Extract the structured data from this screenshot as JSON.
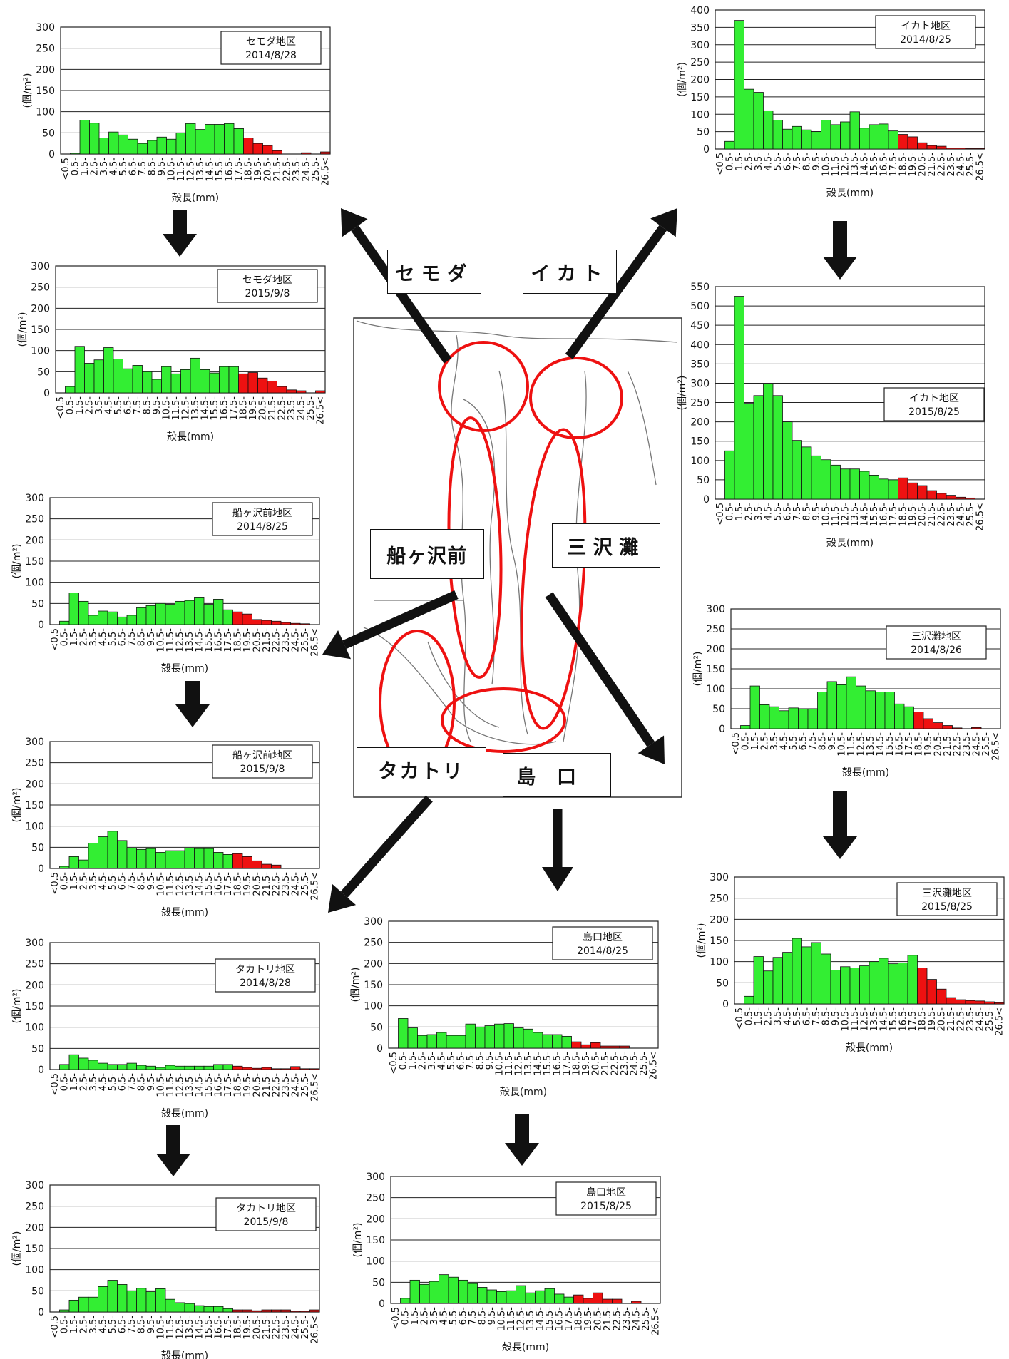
{
  "x_tick_labels": [
    "<0.5",
    "0.5-",
    "1.5-",
    "2.5-",
    "3.5-",
    "4.5-",
    "5.5-",
    "6.5-",
    "7.5-",
    "8.5-",
    "9.5-",
    "10.5-",
    "11.5-",
    "12.5-",
    "13.5-",
    "14.5-",
    "15.5-",
    "16.5-",
    "17.5-",
    "18.5-",
    "19.5-",
    "20.5-",
    "21.5-",
    "22.5-",
    "23.5-",
    "24.5-",
    "25.5-",
    "26.5<"
  ],
  "colors": {
    "below_18": "#33ee33",
    "from_18": "#ee1111",
    "map_circle": "#ee1111",
    "arrow": "#111111"
  },
  "region_labels": {
    "semoda": "セモダ",
    "ikato": "イカト",
    "funagasawamae": "船ヶ沢前",
    "misawanada": "三沢灘",
    "takatori": "タカトリ",
    "shimaguchi": "島口"
  },
  "chart_data": [
    {
      "type": "bar",
      "title": "セモダ地区",
      "date": "2014/8/28",
      "ylabel": "(個/m²)",
      "xlabel": "殻長(mm)",
      "ylim": [
        0,
        300
      ],
      "yticks": [
        0,
        50,
        100,
        150,
        200,
        250,
        300
      ],
      "values": [
        0,
        2,
        80,
        73,
        38,
        52,
        45,
        35,
        25,
        32,
        40,
        35,
        50,
        72,
        58,
        70,
        70,
        72,
        60,
        38,
        25,
        20,
        8,
        0,
        0,
        3,
        0,
        5
      ]
    },
    {
      "type": "bar",
      "title": "セモダ地区",
      "date": "2015/9/8",
      "ylabel": "(個/m²)",
      "xlabel": "殻長(mm)",
      "ylim": [
        0,
        300
      ],
      "yticks": [
        0,
        50,
        100,
        150,
        200,
        250,
        300
      ],
      "values": [
        0,
        15,
        110,
        70,
        78,
        107,
        80,
        57,
        65,
        50,
        32,
        62,
        45,
        55,
        82,
        55,
        47,
        62,
        62,
        45,
        48,
        35,
        28,
        15,
        7,
        5,
        0,
        5
      ]
    },
    {
      "type": "bar",
      "title": "船ヶ沢前地区",
      "date": "2014/8/25",
      "ylabel": "(個/m²)",
      "xlabel": "殻長(mm)",
      "ylim": [
        0,
        300
      ],
      "yticks": [
        0,
        50,
        100,
        150,
        200,
        250,
        300
      ],
      "values": [
        0,
        8,
        75,
        55,
        22,
        32,
        30,
        18,
        22,
        40,
        45,
        50,
        48,
        55,
        57,
        65,
        48,
        60,
        35,
        30,
        25,
        12,
        10,
        8,
        5,
        3,
        2,
        0
      ]
    },
    {
      "type": "bar",
      "title": "船ヶ沢前地区",
      "date": "2015/9/8",
      "ylabel": "(個/m²)",
      "xlabel": "殻長(mm)",
      "ylim": [
        0,
        300
      ],
      "yticks": [
        0,
        50,
        100,
        150,
        200,
        250,
        300
      ],
      "values": [
        0,
        5,
        28,
        20,
        60,
        75,
        88,
        66,
        48,
        45,
        47,
        38,
        42,
        42,
        48,
        47,
        47,
        38,
        33,
        35,
        28,
        18,
        10,
        8,
        0,
        0,
        0,
        0
      ]
    },
    {
      "type": "bar",
      "title": "タカトリ地区",
      "date": "2014/8/28",
      "ylabel": "(個/m²)",
      "xlabel": "殻長(mm)",
      "ylim": [
        0,
        300
      ],
      "yticks": [
        0,
        50,
        100,
        150,
        200,
        250,
        300
      ],
      "values": [
        0,
        12,
        35,
        27,
        22,
        15,
        12,
        12,
        15,
        10,
        8,
        5,
        10,
        8,
        8,
        8,
        8,
        12,
        12,
        8,
        5,
        3,
        5,
        2,
        2,
        7,
        2,
        2
      ]
    },
    {
      "type": "bar",
      "title": "タカトリ地区",
      "date": "2015/9/8",
      "ylabel": "(個/m²)",
      "xlabel": "殻長(mm)",
      "ylim": [
        0,
        300
      ],
      "yticks": [
        0,
        50,
        100,
        150,
        200,
        250,
        300
      ],
      "values": [
        0,
        5,
        28,
        35,
        35,
        60,
        75,
        65,
        50,
        56,
        48,
        55,
        30,
        22,
        20,
        15,
        13,
        13,
        8,
        5,
        5,
        3,
        5,
        5,
        5,
        2,
        2,
        5
      ]
    },
    {
      "type": "bar",
      "title": "島口地区",
      "date": "2014/8/25",
      "ylabel": "(個/m²)",
      "xlabel": "殻長(mm)",
      "ylim": [
        0,
        300
      ],
      "yticks": [
        0,
        50,
        100,
        150,
        200,
        250,
        300
      ],
      "values": [
        0,
        70,
        48,
        30,
        32,
        37,
        30,
        30,
        57,
        50,
        53,
        57,
        58,
        48,
        45,
        37,
        32,
        32,
        28,
        15,
        8,
        13,
        5,
        5,
        5,
        0,
        0,
        0
      ]
    },
    {
      "type": "bar",
      "title": "島口地区",
      "date": "2015/8/25",
      "ylabel": "(個/m²)",
      "xlabel": "殻長(mm)",
      "ylim": [
        0,
        300
      ],
      "yticks": [
        0,
        50,
        100,
        150,
        200,
        250,
        300
      ],
      "values": [
        0,
        12,
        55,
        45,
        52,
        68,
        62,
        55,
        47,
        38,
        32,
        28,
        30,
        42,
        25,
        30,
        35,
        22,
        15,
        20,
        12,
        25,
        10,
        10,
        0,
        5,
        0,
        0
      ]
    },
    {
      "type": "bar",
      "title": "イカト地区",
      "date": "2014/8/25",
      "ylabel": "(個/m²)",
      "xlabel": "殻長(mm)",
      "ylim": [
        0,
        400
      ],
      "yticks": [
        0,
        50,
        100,
        150,
        200,
        250,
        300,
        350,
        400
      ],
      "values": [
        0,
        22,
        370,
        172,
        163,
        110,
        83,
        57,
        65,
        55,
        50,
        83,
        70,
        78,
        107,
        60,
        70,
        72,
        52,
        42,
        35,
        18,
        10,
        8,
        3,
        3,
        2,
        2
      ]
    },
    {
      "type": "bar",
      "title": "イカト地区",
      "date": "2015/8/25",
      "ylabel": "(個/m²)",
      "xlabel": "殻長(mm)",
      "ylim": [
        0,
        550
      ],
      "yticks": [
        0,
        50,
        100,
        150,
        200,
        250,
        300,
        350,
        400,
        450,
        500,
        550
      ],
      "values": [
        0,
        125,
        525,
        248,
        268,
        298,
        268,
        200,
        152,
        135,
        112,
        102,
        88,
        78,
        78,
        72,
        62,
        52,
        50,
        55,
        42,
        35,
        22,
        15,
        10,
        5,
        3,
        0
      ]
    },
    {
      "type": "bar",
      "title": "三沢灘地区",
      "date": "2014/8/26",
      "ylabel": "(個/m²)",
      "xlabel": "殻長(mm)",
      "ylim": [
        0,
        300
      ],
      "yticks": [
        0,
        50,
        100,
        150,
        200,
        250,
        300
      ],
      "values": [
        0,
        8,
        107,
        60,
        55,
        45,
        52,
        50,
        50,
        92,
        118,
        110,
        130,
        107,
        95,
        92,
        92,
        62,
        55,
        42,
        25,
        15,
        8,
        2,
        0,
        3,
        0,
        0
      ]
    },
    {
      "type": "bar",
      "title": "三沢灘地区",
      "date": "2015/8/25",
      "ylabel": "(個/m²)",
      "xlabel": "殻長(mm)",
      "ylim": [
        0,
        300
      ],
      "yticks": [
        0,
        50,
        100,
        150,
        200,
        250,
        300
      ],
      "values": [
        0,
        18,
        112,
        78,
        110,
        122,
        155,
        135,
        145,
        118,
        80,
        88,
        85,
        90,
        100,
        108,
        95,
        97,
        115,
        85,
        58,
        35,
        15,
        10,
        8,
        7,
        5,
        3
      ]
    }
  ]
}
